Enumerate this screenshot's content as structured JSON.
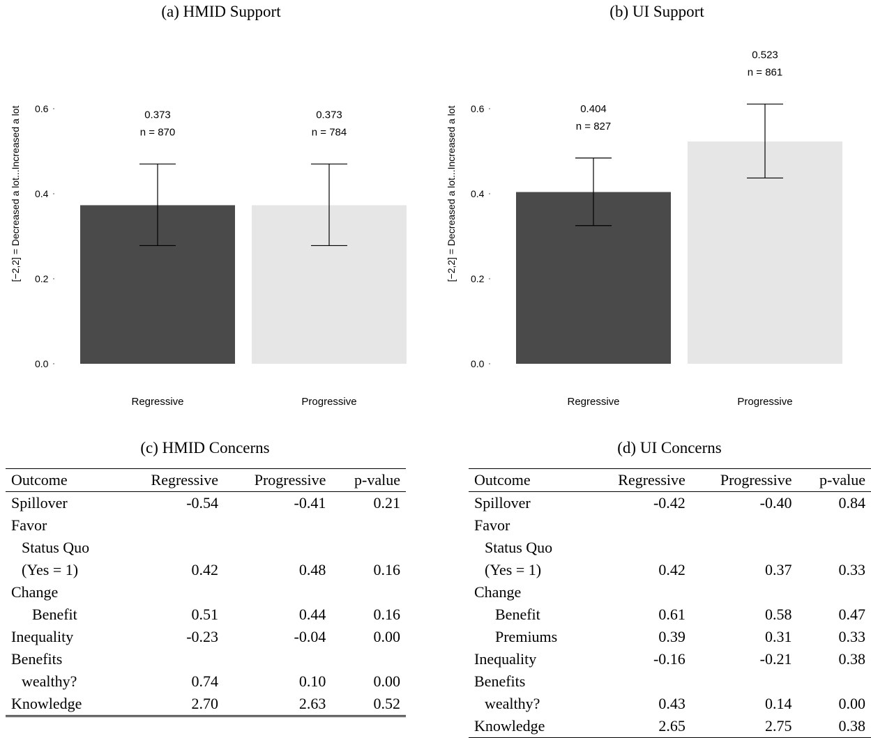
{
  "chart_data": [
    {
      "type": "bar",
      "title": "(a) HMID Support",
      "ylabel": "[−2,2] = Decreased a lot...Increased a lot",
      "categories": [
        "Regressive",
        "Progressive"
      ],
      "values": [
        0.373,
        0.373
      ],
      "ci_low": [
        0.278,
        0.278
      ],
      "ci_high": [
        0.47,
        0.47
      ],
      "value_labels": [
        "0.373",
        "0.373"
      ],
      "n_labels": [
        "n = 870",
        "n = 784"
      ],
      "ylim": [
        0,
        0.65
      ],
      "yticks": [
        0.0,
        0.2,
        0.4,
        0.6
      ],
      "ytick_labels": [
        "0.0",
        "0.2",
        "0.4",
        "0.6"
      ],
      "colors": [
        "#4a4a4a",
        "#e6e6e6"
      ],
      "grid": false
    },
    {
      "type": "bar",
      "title": "(b) UI Support",
      "ylabel": "[−2,2] = Decreased a lot...Increased a lot",
      "categories": [
        "Regressive",
        "Progressive"
      ],
      "values": [
        0.404,
        0.523
      ],
      "ci_low": [
        0.325,
        0.437
      ],
      "ci_high": [
        0.484,
        0.611
      ],
      "value_labels": [
        "0.404",
        "0.523"
      ],
      "n_labels": [
        "n = 827",
        "n = 861"
      ],
      "ylim": [
        0,
        0.65
      ],
      "yticks": [
        0.0,
        0.2,
        0.4,
        0.6
      ],
      "ytick_labels": [
        "0.0",
        "0.2",
        "0.4",
        "0.6"
      ],
      "colors": [
        "#4a4a4a",
        "#e6e6e6"
      ],
      "grid": false
    },
    {
      "type": "table",
      "title": "(c) HMID Concerns",
      "columns": [
        "Outcome",
        "Regressive",
        "Progressive",
        "p-value"
      ],
      "rows": [
        {
          "label": "Spillover",
          "indent": 0,
          "values": [
            "-0.54",
            "-0.41",
            "0.21"
          ]
        },
        {
          "label": "Favor",
          "indent": 0,
          "values": [
            "",
            "",
            ""
          ]
        },
        {
          "label": "Status Quo",
          "indent": 1,
          "values": [
            "",
            "",
            ""
          ]
        },
        {
          "label": "(Yes = 1)",
          "indent": 1,
          "values": [
            "0.42",
            "0.48",
            "0.16"
          ]
        },
        {
          "label": "Change",
          "indent": 0,
          "values": [
            "",
            "",
            ""
          ]
        },
        {
          "label": "Benefit",
          "indent": 2,
          "values": [
            "0.51",
            "0.44",
            "0.16"
          ]
        },
        {
          "label": "Inequality",
          "indent": 0,
          "values": [
            "-0.23",
            "-0.04",
            "0.00"
          ]
        },
        {
          "label": "Benefits",
          "indent": 0,
          "values": [
            "",
            "",
            ""
          ]
        },
        {
          "label": "wealthy?",
          "indent": 1,
          "values": [
            "0.74",
            "0.10",
            "0.00"
          ]
        },
        {
          "label": "Knowledge",
          "indent": 0,
          "values": [
            "2.70",
            "2.63",
            "0.52"
          ]
        }
      ]
    },
    {
      "type": "table",
      "title": "(d) UI Concerns",
      "columns": [
        "Outcome",
        "Regressive",
        "Progressive",
        "p-value"
      ],
      "rows": [
        {
          "label": "Spillover",
          "indent": 0,
          "values": [
            "-0.42",
            "-0.40",
            "0.84"
          ]
        },
        {
          "label": "Favor",
          "indent": 0,
          "values": [
            "",
            "",
            ""
          ]
        },
        {
          "label": "Status Quo",
          "indent": 1,
          "values": [
            "",
            "",
            ""
          ]
        },
        {
          "label": "(Yes = 1)",
          "indent": 1,
          "values": [
            "0.42",
            "0.37",
            "0.33"
          ]
        },
        {
          "label": "Change",
          "indent": 0,
          "values": [
            "",
            "",
            ""
          ]
        },
        {
          "label": "Benefit",
          "indent": 2,
          "values": [
            "0.61",
            "0.58",
            "0.47"
          ]
        },
        {
          "label": "Premiums",
          "indent": 2,
          "values": [
            "0.39",
            "0.31",
            "0.33"
          ]
        },
        {
          "label": "Inequality",
          "indent": 0,
          "values": [
            "-0.16",
            "-0.21",
            "0.38"
          ]
        },
        {
          "label": "Benefits",
          "indent": 0,
          "values": [
            "",
            "",
            ""
          ]
        },
        {
          "label": "wealthy?",
          "indent": 1,
          "values": [
            "0.43",
            "0.14",
            "0.00"
          ]
        },
        {
          "label": "Knowledge",
          "indent": 0,
          "values": [
            "2.65",
            "2.75",
            "0.38"
          ]
        }
      ]
    }
  ]
}
